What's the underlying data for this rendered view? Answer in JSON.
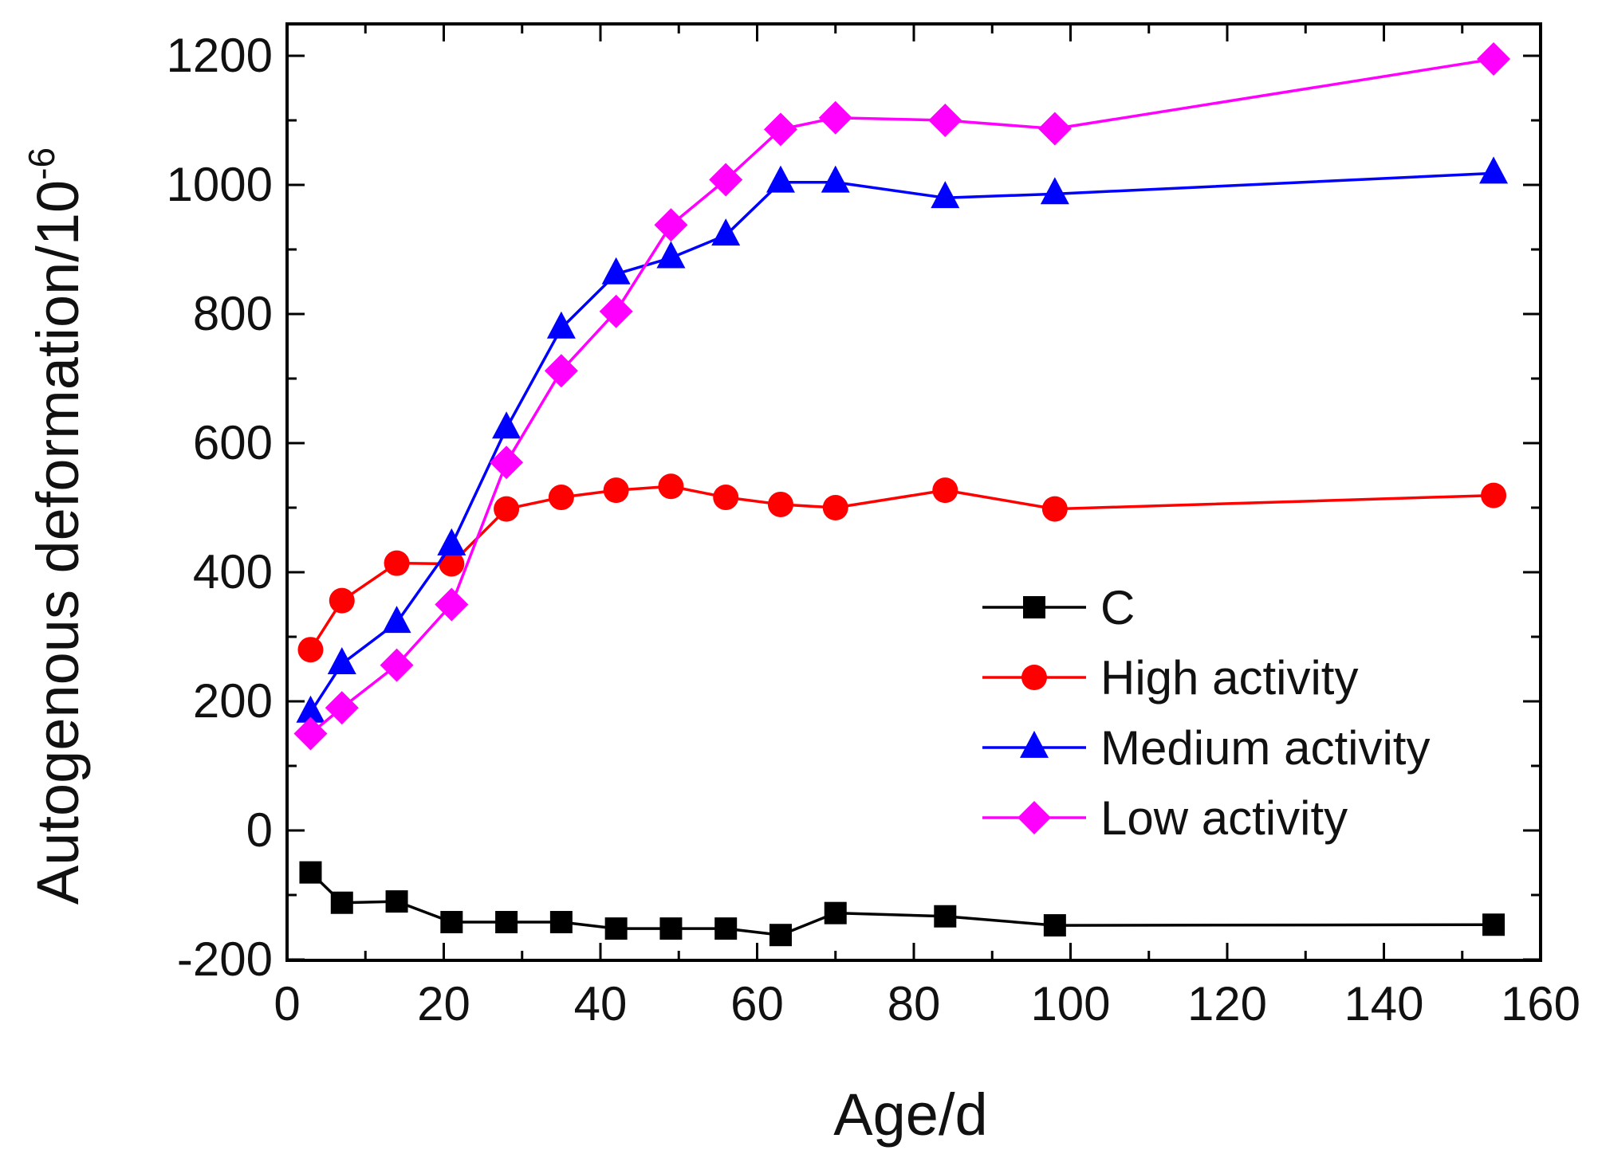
{
  "chart_data": {
    "type": "line",
    "title": "",
    "xlabel": "Age/d",
    "ylabel": "Autogenous deformation/10",
    "ylabel_superscript": "-6",
    "xlim": [
      0,
      160
    ],
    "ylim": [
      -200,
      1250
    ],
    "xticks": [
      0,
      20,
      40,
      60,
      80,
      100,
      120,
      140,
      160
    ],
    "yticks": [
      -200,
      0,
      200,
      400,
      600,
      800,
      1000,
      1200
    ],
    "x_minor_step": 10,
    "y_minor_step": 100,
    "grid": false,
    "legend_position": "lower-right",
    "x": [
      3,
      7,
      14,
      21,
      28,
      35,
      42,
      49,
      56,
      63,
      70,
      84,
      98,
      154
    ],
    "series": [
      {
        "name": "C",
        "color": "#000000",
        "marker": "square",
        "values": [
          -65,
          -112,
          -110,
          -142,
          -142,
          -142,
          -152,
          -152,
          -152,
          -162,
          -128,
          -133,
          -147,
          -146
        ]
      },
      {
        "name": "High activity",
        "color": "#ff0000",
        "marker": "circle",
        "values": [
          280,
          356,
          414,
          413,
          498,
          516,
          527,
          533,
          516,
          505,
          500,
          527,
          498,
          519
        ]
      },
      {
        "name": "Medium activity",
        "color": "#0000ff",
        "marker": "triangle",
        "values": [
          183,
          258,
          322,
          442,
          623,
          778,
          862,
          887,
          922,
          1004,
          1004,
          980,
          986,
          1018
        ]
      },
      {
        "name": "Low activity",
        "color": "#ff00ff",
        "marker": "diamond",
        "values": [
          150,
          190,
          256,
          350,
          570,
          712,
          804,
          938,
          1008,
          1086,
          1104,
          1100,
          1087,
          1195
        ]
      }
    ]
  }
}
